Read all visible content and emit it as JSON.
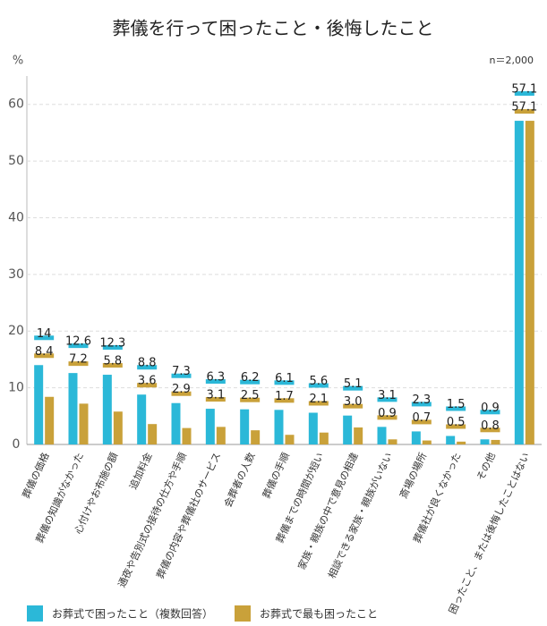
{
  "chart_data": {
    "type": "bar",
    "title": "葬儀を行って困ったこと・後悔したこと",
    "y_unit": "%",
    "note": "n＝2,000",
    "categories": [
      "葬儀の価格",
      "葬儀の知識がなかった",
      "心付けやお布施の額",
      "追加料金",
      "通夜や告別式の接待の仕方や手順",
      "葬儀の内容や葬儀社のサービス",
      "会葬者の人数",
      "葬儀の手順",
      "葬儀までの時間が短い",
      "家族・親族の中で意見の相違",
      "相談できる家族・親族がいない",
      "斎場の場所",
      "葬儀社が良くなかった",
      "その他",
      "困ったこと、または後悔したことはない"
    ],
    "series": [
      {
        "name": "お葬式で困ったこと（複数回答）",
        "color": "#2bb8d8",
        "values": [
          14,
          12.6,
          12.3,
          8.8,
          7.3,
          6.3,
          6.2,
          6.1,
          5.6,
          5.1,
          3.1,
          2.3,
          1.5,
          0.9,
          57.1
        ]
      },
      {
        "name": "お葬式で最も困ったこと",
        "color": "#c9a13a",
        "values": [
          8.4,
          7.2,
          5.8,
          3.6,
          2.9,
          3.1,
          2.5,
          1.7,
          2.1,
          3.0,
          0.9,
          0.7,
          0.5,
          0.8,
          57.1
        ],
        "value_labels": [
          "8.4",
          "7.2",
          "5.8",
          "3.6",
          "2.9",
          "3.1",
          "2.5",
          "1.7",
          "2.1",
          "3.0",
          "0.9",
          "0.7",
          "0.5",
          "0.8",
          "57.1"
        ]
      }
    ],
    "ylim": [
      0,
      65
    ],
    "yticks": [
      0,
      10,
      20,
      30,
      40,
      50,
      60
    ],
    "grid": true
  }
}
